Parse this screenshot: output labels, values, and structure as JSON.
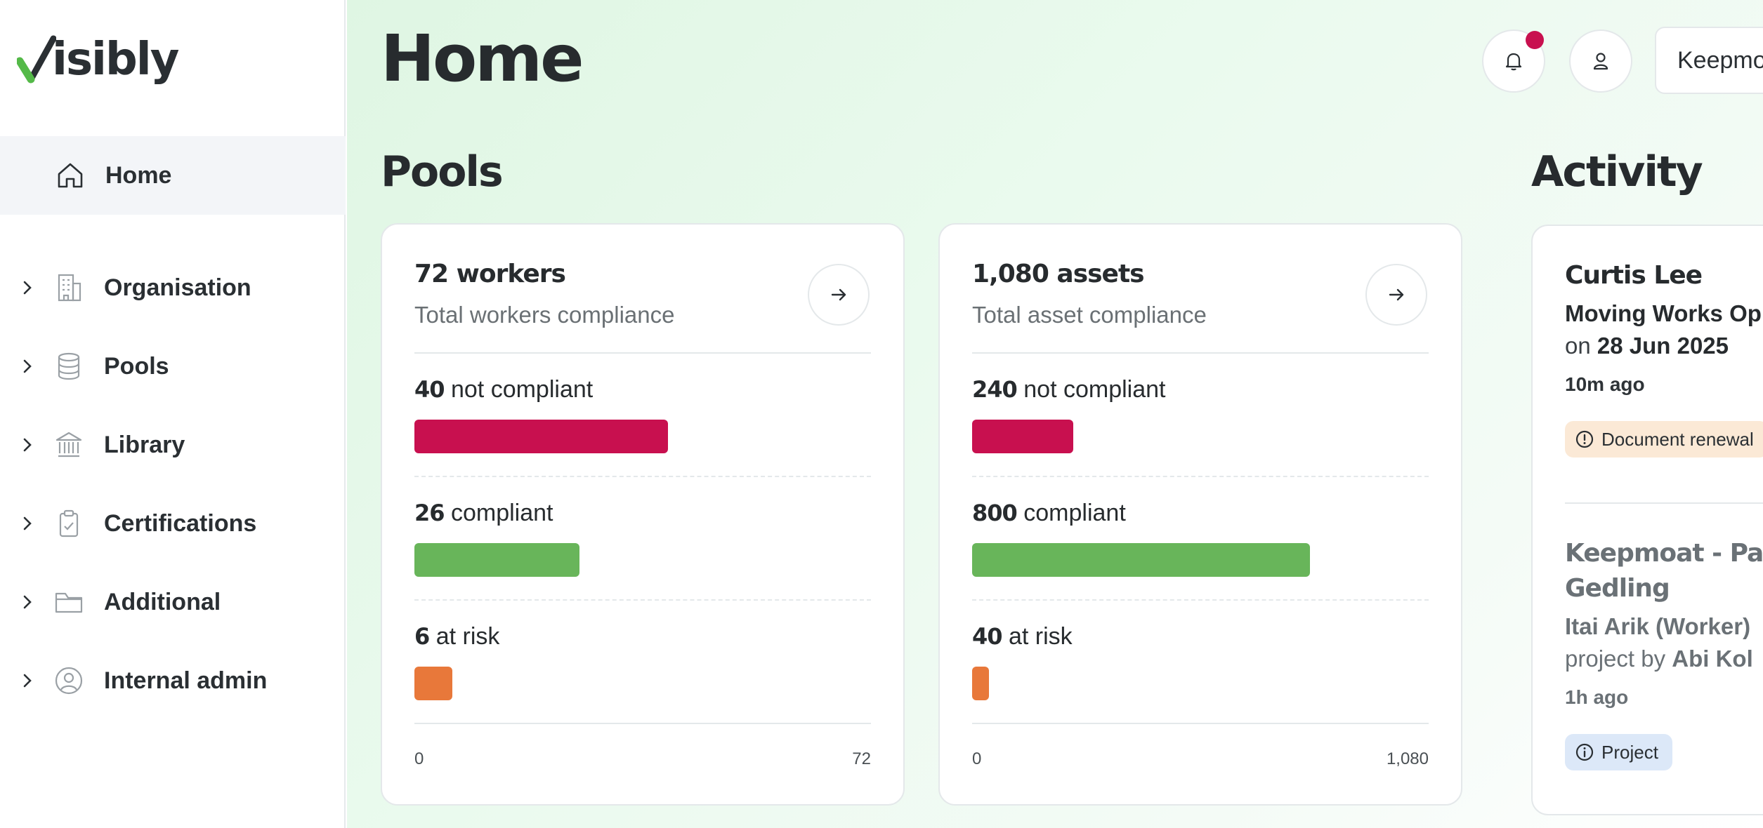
{
  "brand": {
    "name": "isibly",
    "check_color": "#54b948"
  },
  "sidebar": {
    "home": {
      "label": "Home",
      "icon": "home-icon"
    },
    "items": [
      {
        "label": "Organisation",
        "icon": "building-icon"
      },
      {
        "label": "Pools",
        "icon": "database-icon"
      },
      {
        "label": "Library",
        "icon": "bank-icon"
      },
      {
        "label": "Certifications",
        "icon": "clipboard-check-icon"
      },
      {
        "label": "Additional",
        "icon": "folder-icon"
      },
      {
        "label": "Internal admin",
        "icon": "user-circle-icon"
      }
    ]
  },
  "header": {
    "title": "Home",
    "org_select_value": "Keepmoat"
  },
  "pools": {
    "title": "Pools",
    "cards": [
      {
        "title": "72 workers",
        "subtitle": "Total workers compliance",
        "max": 72,
        "axis_min_label": "0",
        "axis_max_label": "72",
        "metrics": [
          {
            "count": "40",
            "label": "not compliant",
            "value": 40,
            "color": "#c8104f"
          },
          {
            "count": "26",
            "label": "compliant",
            "value": 26,
            "color": "#68b55a"
          },
          {
            "count": "6",
            "label": "at risk",
            "value": 6,
            "color": "#e8783a"
          }
        ]
      },
      {
        "title": "1,080 assets",
        "subtitle": "Total asset compliance",
        "max": 1080,
        "axis_min_label": "0",
        "axis_max_label": "1,080",
        "metrics": [
          {
            "count": "240",
            "label": "not compliant",
            "value": 240,
            "color": "#c8104f"
          },
          {
            "count": "800",
            "label": "compliant",
            "value": 800,
            "color": "#68b55a"
          },
          {
            "count": "40",
            "label": "at risk",
            "value": 40,
            "color": "#e8783a"
          }
        ]
      }
    ]
  },
  "activity": {
    "title": "Activity",
    "entries": [
      {
        "name": "Curtis Lee",
        "line1": "Moving Works Op",
        "line2_prefix": "on",
        "line2_bold": "28 Jun 2025",
        "time": "10m ago",
        "badge": "Document renewal",
        "badge_color": "#fbe9d6"
      },
      {
        "name": "Keepmoat - Pa",
        "name2": "Gedling",
        "line1": "Itai Arik (Worker)",
        "line2_prefix": "project by",
        "line2_bold": "Abi Kol",
        "time": "1h ago",
        "badge": "Project",
        "badge_color": "#dce8f8"
      }
    ]
  }
}
